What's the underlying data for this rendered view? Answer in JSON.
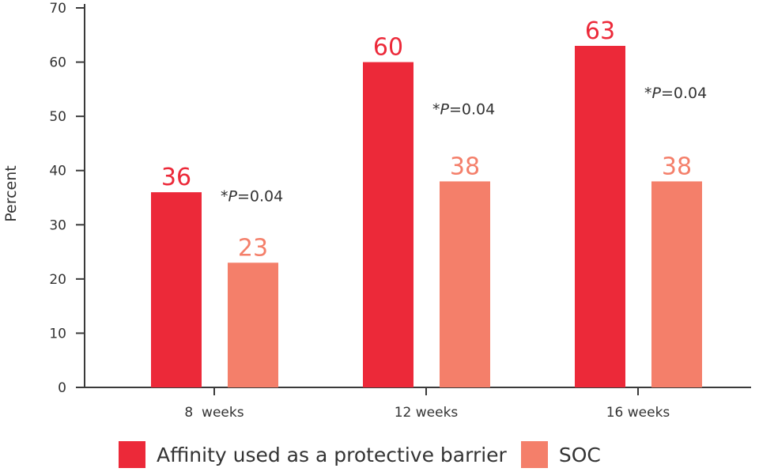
{
  "chart_data": {
    "type": "bar",
    "categories": [
      "8  weeks",
      "12 weeks",
      "16 weeks"
    ],
    "series": [
      {
        "name": "Affinity used as a protective barrier",
        "values": [
          36,
          60,
          63
        ],
        "color": "#ec2939"
      },
      {
        "name": "SOC",
        "values": [
          23,
          38,
          38
        ],
        "color": "#f47f6a"
      }
    ],
    "value_labels": [
      [
        "36",
        "60",
        "63"
      ],
      [
        "23",
        "38",
        "38"
      ]
    ],
    "annotations": [
      {
        "category": "8  weeks",
        "prefix": "*",
        "italic": "P",
        "suffix": "=0.04"
      },
      {
        "category": "12 weeks",
        "prefix": "*",
        "italic": "P",
        "suffix": "=0.04"
      },
      {
        "category": "16 weeks",
        "prefix": "*",
        "italic": "P",
        "suffix": "=0.04"
      }
    ],
    "ylabel": "Percent",
    "xlabel": "",
    "ylim": [
      0,
      70
    ],
    "yticks": [
      0,
      10,
      20,
      30,
      40,
      50,
      60,
      70
    ],
    "grid": false,
    "legend_position": "bottom"
  }
}
